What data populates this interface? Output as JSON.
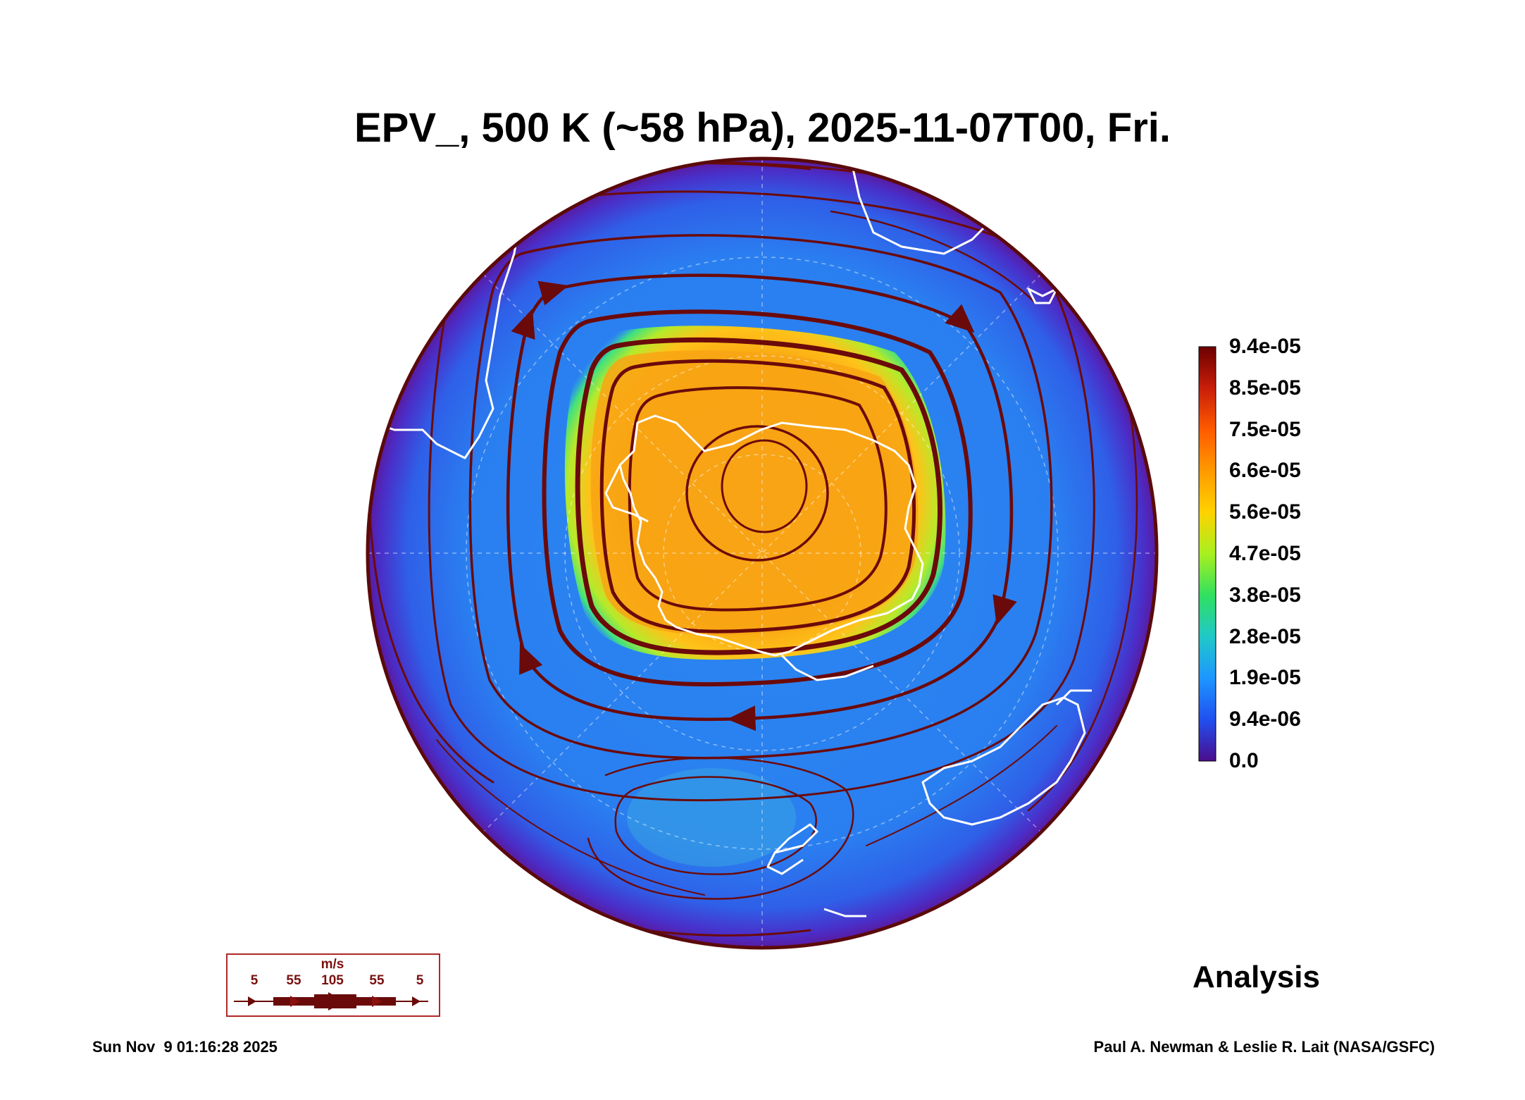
{
  "title": "EPV_, 500 K (~58 hPa), 2025-11-07T00, Fri.",
  "colorbar": {
    "ticks": [
      "9.4e-05",
      "8.5e-05",
      "7.5e-05",
      "6.6e-05",
      "5.6e-05",
      "4.7e-05",
      "3.8e-05",
      "2.8e-05",
      "1.9e-05",
      "9.4e-06",
      "0.0"
    ],
    "colors": [
      "#6b0000",
      "#c81e0a",
      "#ff5a00",
      "#ff9a00",
      "#ffd200",
      "#a8f020",
      "#30e060",
      "#20c8c8",
      "#1e96ff",
      "#2050f0",
      "#4b0c8c"
    ]
  },
  "wind_legend": {
    "unit": "m/s",
    "values": [
      "5",
      "55",
      "105",
      "55",
      "5"
    ]
  },
  "label": "Analysis",
  "timestamp": "Sun Nov  9 01:16:28 2025",
  "credit": "Paul A. Newman & Leslie R. Lait (NASA/GSFC)",
  "colors": {
    "vortex_core": "#ff9a00",
    "vortex_edge": "#30e060",
    "background_field": "#1e96ff",
    "streamline": "#6b0a0a",
    "coastline": "#ffffff"
  }
}
